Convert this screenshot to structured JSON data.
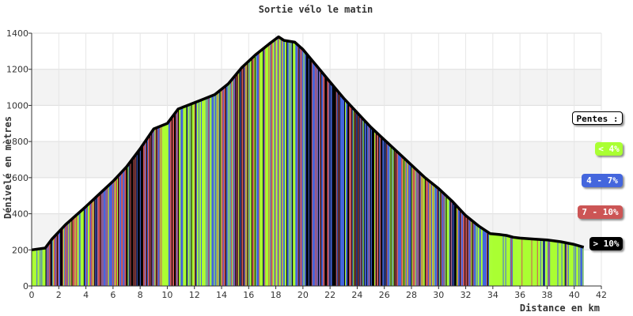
{
  "chart_data": {
    "type": "area",
    "title": "Sortie vélo le matin",
    "xlabel": "Distance en km",
    "ylabel": "Dénivelé en mètres",
    "xlim": [
      0,
      42
    ],
    "ylim": [
      0,
      1400
    ],
    "x_ticks": [
      0,
      2,
      4,
      6,
      8,
      10,
      12,
      14,
      16,
      18,
      20,
      22,
      24,
      26,
      28,
      30,
      32,
      34,
      36,
      38,
      40,
      42
    ],
    "y_ticks": [
      0,
      200,
      400,
      600,
      800,
      1000,
      1200,
      1400
    ],
    "grid": true,
    "legend_placement": "right",
    "legend": {
      "title": "Pentes :",
      "items": [
        {
          "label": "< 4%",
          "color": "#aaff33"
        },
        {
          "label": "4 - 7%",
          "color": "#4466dd"
        },
        {
          "label": "7 - 10%",
          "color": "#cc5555"
        },
        {
          "label": "> 10%",
          "color": "#000000"
        }
      ]
    },
    "profile": {
      "x": [
        0,
        1,
        1.5,
        2.5,
        4,
        5,
        6,
        7,
        8,
        9,
        10,
        10.8,
        11.5,
        12.5,
        13.5,
        14.5,
        15.5,
        16.5,
        17.5,
        18.2,
        18.6,
        19.4,
        20,
        21,
        22,
        23,
        24,
        25,
        26,
        27,
        28,
        29,
        30,
        31,
        32,
        33,
        33.8,
        34.5,
        35,
        35.5,
        36,
        37,
        38,
        39,
        40,
        40.7
      ],
      "y": [
        200,
        210,
        260,
        340,
        440,
        510,
        580,
        660,
        760,
        870,
        900,
        980,
        1000,
        1030,
        1060,
        1120,
        1210,
        1280,
        1340,
        1380,
        1360,
        1350,
        1310,
        1220,
        1130,
        1040,
        960,
        880,
        810,
        740,
        670,
        600,
        540,
        470,
        390,
        330,
        290,
        285,
        280,
        270,
        265,
        260,
        255,
        245,
        230,
        215
      ]
    }
  }
}
